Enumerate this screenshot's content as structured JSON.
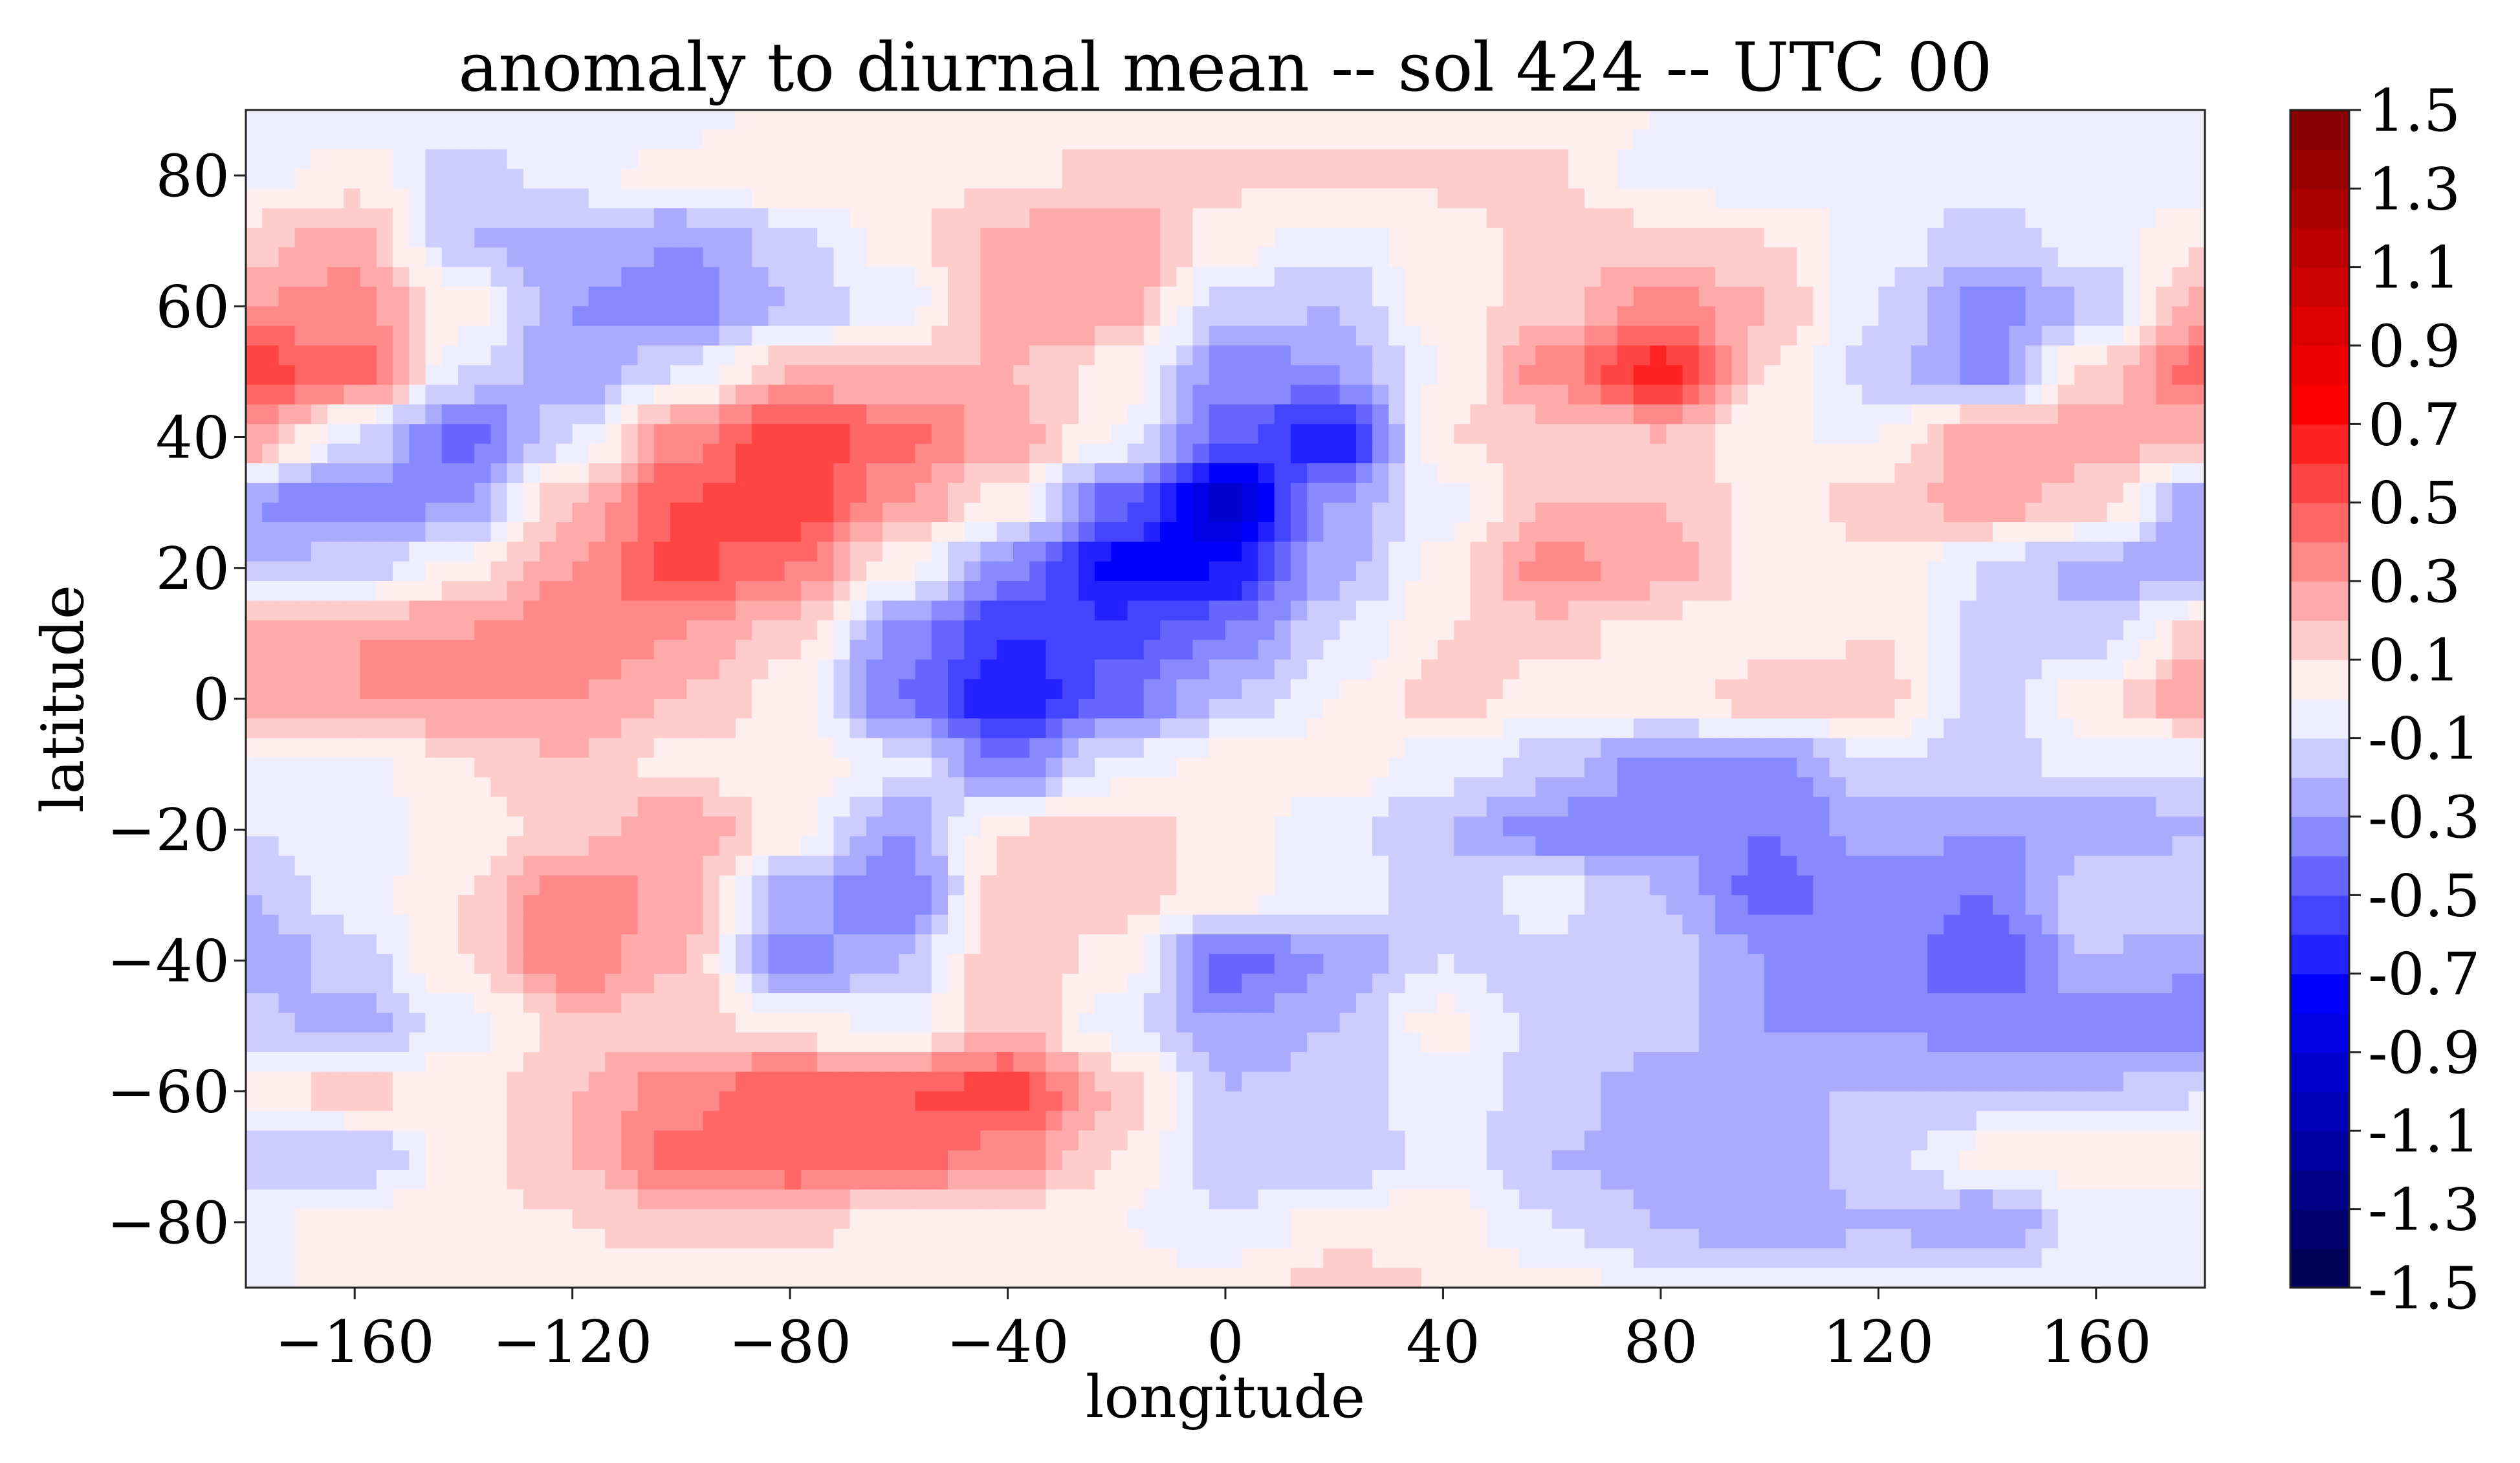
{
  "chart_data": {
    "type": "heatmap",
    "subtype": "filled-contour",
    "title": "anomaly to diurnal mean -- sol 424 -- UTC 00",
    "xlabel": "longitude",
    "ylabel": "latitude",
    "xlim": [
      -180,
      180
    ],
    "ylim": [
      -90,
      90
    ],
    "xticks": [
      -160,
      -120,
      -80,
      -40,
      0,
      40,
      80,
      120,
      160
    ],
    "xtick_labels": [
      "−160",
      "−120",
      "−80",
      "−40",
      "0",
      "40",
      "80",
      "120",
      "160"
    ],
    "yticks": [
      -80,
      -60,
      -40,
      -20,
      0,
      20,
      40,
      60,
      80
    ],
    "ytick_labels": [
      "−80",
      "−60",
      "−40",
      "−20",
      "0",
      "20",
      "40",
      "60",
      "80"
    ],
    "colormap": "seismic",
    "levels": {
      "min": -1.5,
      "max": 1.5,
      "step": 0.1
    },
    "colorbar": {
      "range": [
        -1.5,
        1.5
      ],
      "ticks": [
        1.5,
        1.3,
        1.1,
        0.9,
        0.7,
        0.5,
        0.3,
        0.1,
        -0.1,
        -0.3,
        -0.5,
        -0.7,
        -0.9,
        -1.1,
        -1.3,
        -1.5
      ],
      "tick_labels": [
        "1.5",
        "1.3",
        "1.1",
        "0.9",
        "0.7",
        "0.5",
        "0.3",
        "0.1",
        "-0.1",
        "-0.3",
        "-0.5",
        "-0.7",
        "-0.9",
        "-1.1",
        "-1.3",
        "-1.5"
      ]
    },
    "grid_lon": [
      -180,
      -160,
      -140,
      -120,
      -100,
      -80,
      -60,
      -40,
      -20,
      0,
      20,
      40,
      60,
      80,
      100,
      120,
      140,
      160,
      180
    ],
    "grid_lat": [
      90,
      80,
      70,
      60,
      50,
      40,
      30,
      20,
      10,
      0,
      -10,
      -20,
      -30,
      -40,
      -50,
      -60,
      -70,
      -80,
      -90
    ],
    "values": [
      [
        -0.05,
        -0.05,
        -0.05,
        -0.05,
        -0.05,
        0.05,
        0.05,
        0.05,
        0.05,
        0.05,
        0.05,
        0.05,
        0.05,
        0.0,
        -0.05,
        -0.05,
        -0.05,
        -0.05,
        -0.05
      ],
      [
        -0.05,
        0.05,
        -0.15,
        -0.05,
        0.05,
        0.1,
        0.1,
        0.05,
        0.15,
        0.12,
        0.15,
        0.12,
        0.12,
        -0.05,
        -0.05,
        -0.05,
        -0.05,
        -0.05,
        -0.05
      ],
      [
        0.15,
        0.25,
        -0.2,
        -0.25,
        -0.3,
        -0.15,
        0.05,
        0.25,
        0.3,
        0.05,
        -0.05,
        0.05,
        0.15,
        0.15,
        0.1,
        -0.05,
        -0.15,
        -0.05,
        0.1
      ],
      [
        0.3,
        0.35,
        0.05,
        -0.3,
        -0.35,
        -0.2,
        -0.05,
        0.25,
        0.3,
        -0.15,
        -0.2,
        0.05,
        0.15,
        0.35,
        0.2,
        -0.1,
        -0.35,
        -0.2,
        0.25
      ],
      [
        0.55,
        0.45,
        -0.1,
        -0.3,
        -0.1,
        0.2,
        0.2,
        0.2,
        0.05,
        -0.35,
        -0.3,
        0.0,
        0.35,
        0.65,
        0.1,
        -0.15,
        -0.35,
        0.15,
        0.45
      ],
      [
        0.3,
        -0.1,
        -0.45,
        -0.1,
        0.35,
        0.6,
        0.45,
        0.25,
        0.0,
        -0.45,
        -0.7,
        0.1,
        0.15,
        0.2,
        0.0,
        0.0,
        0.3,
        0.25,
        0.2
      ],
      [
        -0.3,
        -0.4,
        -0.3,
        0.2,
        0.5,
        0.6,
        0.3,
        0.05,
        -0.45,
        -0.95,
        -0.3,
        -0.05,
        0.2,
        0.2,
        0.05,
        0.15,
        0.25,
        0.15,
        -0.3
      ],
      [
        -0.2,
        -0.15,
        0.05,
        0.3,
        0.55,
        0.4,
        0.05,
        -0.35,
        -0.75,
        -0.7,
        -0.25,
        0.05,
        0.35,
        0.25,
        0.05,
        0.05,
        -0.1,
        -0.25,
        -0.3
      ],
      [
        0.25,
        0.3,
        0.3,
        0.4,
        0.3,
        0.15,
        -0.35,
        -0.6,
        -0.55,
        -0.4,
        -0.1,
        0.1,
        0.15,
        0.05,
        0.05,
        0.1,
        -0.15,
        -0.15,
        0.15
      ],
      [
        0.3,
        0.3,
        0.3,
        0.3,
        0.2,
        0.05,
        -0.4,
        -0.7,
        -0.45,
        -0.2,
        0.0,
        0.15,
        0.05,
        0.05,
        0.15,
        0.15,
        -0.15,
        0.05,
        0.3
      ],
      [
        -0.05,
        -0.05,
        0.1,
        0.2,
        0.05,
        0.05,
        -0.05,
        -0.4,
        -0.05,
        0.05,
        0.05,
        -0.05,
        -0.15,
        -0.35,
        -0.35,
        -0.1,
        -0.15,
        -0.05,
        -0.1
      ],
      [
        -0.1,
        -0.05,
        0.05,
        0.15,
        0.3,
        0.05,
        -0.3,
        0.1,
        0.15,
        0.05,
        -0.05,
        -0.2,
        -0.35,
        -0.35,
        -0.4,
        -0.25,
        -0.3,
        -0.3,
        -0.2
      ],
      [
        -0.2,
        -0.05,
        0.1,
        0.4,
        0.25,
        -0.25,
        -0.4,
        0.15,
        0.15,
        0.05,
        -0.05,
        -0.15,
        -0.05,
        -0.2,
        -0.45,
        -0.35,
        -0.4,
        -0.1,
        -0.1
      ],
      [
        -0.3,
        -0.15,
        0.1,
        0.4,
        0.2,
        -0.35,
        -0.2,
        0.2,
        0.05,
        -0.45,
        -0.3,
        -0.1,
        -0.15,
        -0.15,
        -0.3,
        -0.35,
        -0.5,
        -0.2,
        -0.3
      ],
      [
        -0.15,
        -0.25,
        -0.05,
        0.15,
        0.15,
        0.05,
        -0.05,
        0.2,
        -0.05,
        -0.3,
        -0.2,
        0.05,
        -0.15,
        -0.15,
        -0.3,
        -0.3,
        -0.35,
        -0.35,
        -0.35
      ],
      [
        0.05,
        0.15,
        0.05,
        0.2,
        0.35,
        0.5,
        0.5,
        0.55,
        0.2,
        -0.2,
        -0.15,
        -0.05,
        -0.15,
        -0.25,
        -0.2,
        -0.2,
        -0.2,
        -0.2,
        -0.1
      ],
      [
        -0.2,
        -0.2,
        0.05,
        0.2,
        0.45,
        0.5,
        0.45,
        0.35,
        0.1,
        -0.15,
        -0.2,
        -0.05,
        -0.2,
        -0.25,
        -0.25,
        -0.15,
        0.05,
        0.05,
        0.05
      ],
      [
        -0.05,
        0.05,
        0.05,
        0.1,
        0.15,
        0.15,
        0.05,
        0.05,
        0.0,
        -0.1,
        0.05,
        0.05,
        -0.1,
        -0.2,
        -0.3,
        -0.2,
        -0.3,
        -0.05,
        -0.05
      ],
      [
        -0.05,
        0.05,
        0.05,
        0.05,
        0.05,
        0.05,
        0.05,
        0.05,
        0.05,
        0.05,
        0.15,
        0.1,
        0.05,
        -0.05,
        -0.05,
        -0.05,
        -0.05,
        -0.05,
        -0.05
      ]
    ]
  }
}
